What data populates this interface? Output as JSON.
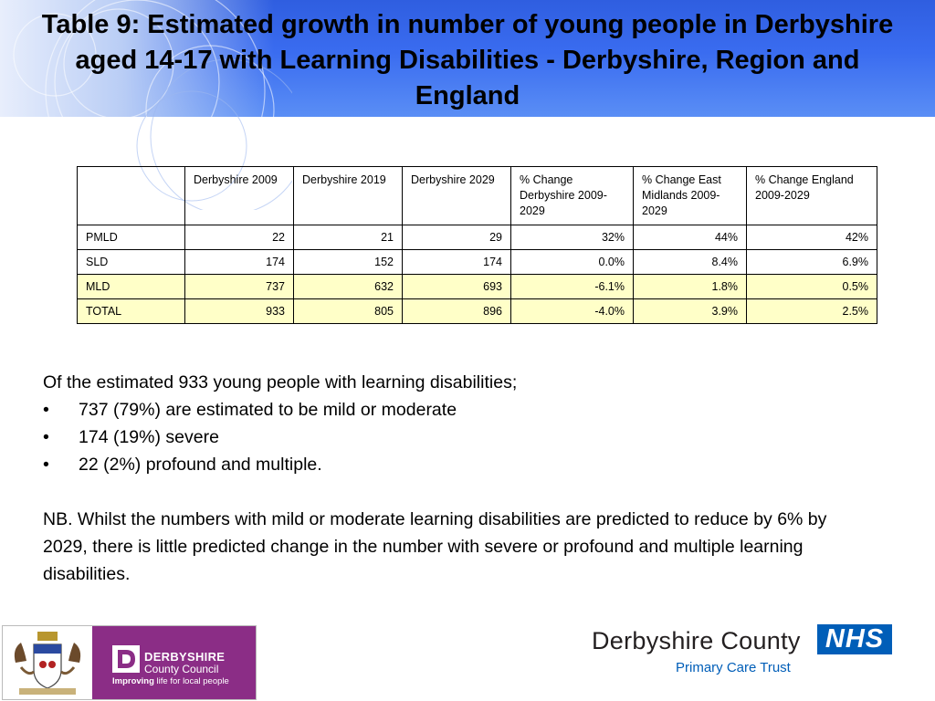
{
  "slide": {
    "title": "Table 9: Estimated growth in number of young people in Derbyshire aged 14-17 with Learning Disabilities - Derbyshire, Region and England",
    "colors": {
      "banner": "#3a6cf0",
      "highlight_row": "#ffffc8",
      "dcc_purple": "#8b2d86",
      "nhs_blue": "#005eb8"
    }
  },
  "table": {
    "headers": [
      "",
      "Derbyshire 2009",
      "Derbyshire 2019",
      "Derbyshire 2029",
      "% Change Derbyshire 2009-2029",
      "% Change East Midlands 2009-2029",
      "% Change England 2009-2029"
    ],
    "rows": [
      [
        "PMLD",
        "22",
        "21",
        "29",
        "32%",
        "44%",
        "42%"
      ],
      [
        "SLD",
        "174",
        "152",
        "174",
        "0.0%",
        "8.4%",
        "6.9%"
      ],
      [
        "MLD",
        "737",
        "632",
        "693",
        "-6.1%",
        "1.8%",
        "0.5%"
      ],
      [
        "TOTAL",
        "933",
        "805",
        "896",
        "-4.0%",
        "3.9%",
        "2.5%"
      ]
    ]
  },
  "body": {
    "intro": "Of the estimated 933 young people with learning disabilities;",
    "bullets": [
      "737 (79%) are estimated to be mild or moderate",
      "174 (19%) severe",
      "22 (2%) profound and multiple."
    ],
    "bullet_symbol": "•",
    "note": "NB. Whilst the numbers with mild or moderate learning disabilities are predicted to reduce by 6% by 2029, there is little predicted change in the number with severe or profound and multiple learning disabilities."
  },
  "logos": {
    "council_name_line1": "DERBYSHIRE",
    "council_name_line2": "County Council",
    "council_tagline_bold": "Improving",
    "council_tagline_rest": " life for local people",
    "pct_name": "Derbyshire County",
    "pct_sub": "Primary Care Trust",
    "nhs": "NHS"
  }
}
